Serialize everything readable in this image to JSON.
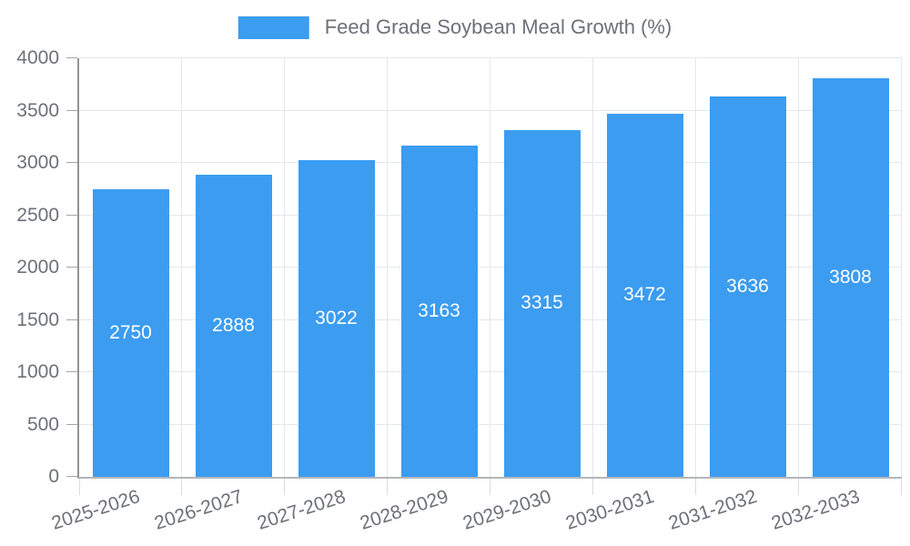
{
  "legend": {
    "label": "Feed Grade Soybean Meal Growth (%)"
  },
  "colors": {
    "background": "#FFFFFF",
    "bar": "#3B9CF0",
    "bar_label": "#FFFFFF",
    "legend_text": "#6E7079",
    "axis_label": "#6E7079",
    "grid_line": "#E4E7EB",
    "x_axis_line": "#B3B6BC",
    "y_axis_line": "#909399",
    "y_tick": "#A6A6A6",
    "x_tick": "#D9DCE0"
  },
  "chart_data": {
    "type": "bar",
    "title": "Feed Grade Soybean Meal Growth (%)",
    "categories": [
      "2025-2026",
      "2026-2027",
      "2027-2028",
      "2028-2029",
      "2029-2030",
      "2030-2031",
      "2031-2032",
      "2032-2033"
    ],
    "values": [
      2750,
      2888,
      3022,
      3163,
      3315,
      3472,
      3636,
      3808
    ],
    "xlabel": "",
    "ylabel": "",
    "ylim": [
      0,
      4000
    ],
    "ytick_interval": 500,
    "yticks": [
      0,
      500,
      1000,
      1500,
      2000,
      2500,
      3000,
      3500,
      4000
    ],
    "grid": true,
    "legend_position": "top-center",
    "value_labels": "inside-center",
    "x_label_rotation_deg": -18
  }
}
